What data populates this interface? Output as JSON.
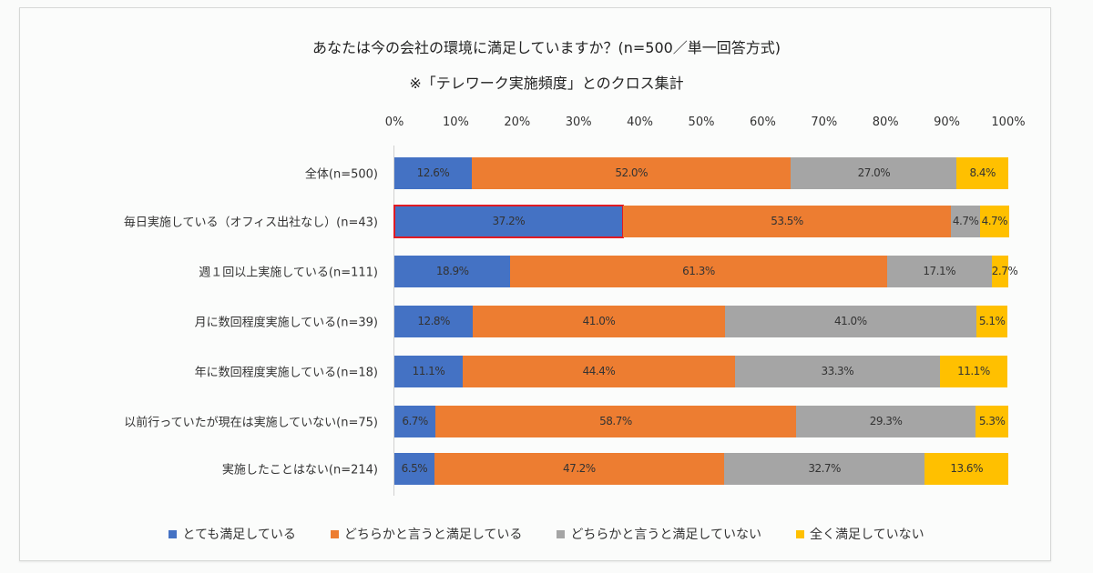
{
  "chart_data": {
    "type": "bar",
    "orientation": "horizontal-stacked-100",
    "title": "あなたは今の会社の環境に満足していますか？(n=500／単一回答方式)",
    "subtitle": "※「テレワーク実施頻度」とのクロス集計",
    "xlim": [
      0,
      100
    ],
    "x_ticks": [
      "0%",
      "10%",
      "20%",
      "30%",
      "40%",
      "50%",
      "60%",
      "70%",
      "80%",
      "90%",
      "100%"
    ],
    "categories": [
      "全体(n=500)",
      "毎日実施している（オフィス出社なし）(n=43)",
      "週１回以上実施している(n=111)",
      "月に数回程度実施している(n=39)",
      "年に数回程度実施している(n=18)",
      "以前行っていたが現在は実施していない(n=75)",
      "実施したことはない(n=214)"
    ],
    "series": [
      {
        "name": "とても満足している",
        "color": "#4472c4",
        "values": [
          12.6,
          37.2,
          18.9,
          12.8,
          11.1,
          6.7,
          6.5
        ],
        "labels": [
          "12.6%",
          "37.2%",
          "18.9%",
          "12.8%",
          "11.1%",
          "6.7%",
          "6.5%"
        ]
      },
      {
        "name": "どちらかと言うと満足している",
        "color": "#ed7d31",
        "values": [
          52.0,
          53.5,
          61.3,
          41.0,
          44.4,
          58.7,
          47.2
        ],
        "labels": [
          "52.0%",
          "53.5%",
          "61.3%",
          "41.0%",
          "44.4%",
          "58.7%",
          "47.2%"
        ]
      },
      {
        "name": "どちらかと言うと満足していない",
        "color": "#a5a5a5",
        "values": [
          27.0,
          4.7,
          17.1,
          41.0,
          33.3,
          29.3,
          32.7
        ],
        "labels": [
          "27.0%",
          "4.7%",
          "17.1%",
          "41.0%",
          "33.3%",
          "29.3%",
          "32.7%"
        ]
      },
      {
        "name": "全く満足していない",
        "color": "#ffc000",
        "values": [
          8.4,
          4.7,
          2.7,
          5.1,
          11.1,
          5.3,
          13.6
        ],
        "labels": [
          "8.4%",
          "4.7%",
          "2.7%",
          "5.1%",
          "11.1%",
          "5.3%",
          "13.6%"
        ]
      }
    ],
    "highlight": {
      "category_index": 1,
      "series_index": 0,
      "color": "#e01b24"
    },
    "legend_position": "bottom",
    "grid": false
  }
}
